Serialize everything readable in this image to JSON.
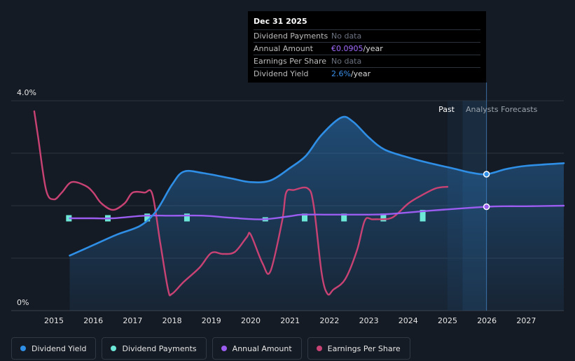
{
  "chart_data": {
    "type": "line",
    "y_axis": {
      "top_label": "4.0%",
      "bottom_label": "0%",
      "ylim": [
        0,
        4.0
      ]
    },
    "x_ticks": [
      "2015",
      "2016",
      "2017",
      "2018",
      "2019",
      "2020",
      "2021",
      "2022",
      "2023",
      "2024",
      "2025",
      "2026",
      "2027"
    ],
    "regions": {
      "past_label": "Past",
      "forecast_label": "Analysts Forecasts"
    },
    "series": [
      {
        "name": "Dividend Yield",
        "color": "#2f8fe6",
        "unit": "%",
        "points": [
          [
            2015.4,
            1.05
          ],
          [
            2016.0,
            1.25
          ],
          [
            2016.6,
            1.45
          ],
          [
            2017.2,
            1.62
          ],
          [
            2017.6,
            1.9
          ],
          [
            2018.0,
            2.4
          ],
          [
            2018.3,
            2.65
          ],
          [
            2018.8,
            2.62
          ],
          [
            2019.5,
            2.52
          ],
          [
            2020.0,
            2.45
          ],
          [
            2020.5,
            2.48
          ],
          [
            2021.0,
            2.72
          ],
          [
            2021.4,
            2.95
          ],
          [
            2021.8,
            3.35
          ],
          [
            2022.3,
            3.68
          ],
          [
            2022.6,
            3.6
          ],
          [
            2023.0,
            3.3
          ],
          [
            2023.4,
            3.07
          ],
          [
            2024.0,
            2.92
          ],
          [
            2024.5,
            2.82
          ],
          [
            2025.2,
            2.7
          ],
          [
            2025.6,
            2.63
          ],
          [
            2025.99,
            2.6
          ],
          [
            2026.5,
            2.7
          ],
          [
            2027.0,
            2.76
          ],
          [
            2028.0,
            2.81
          ]
        ]
      },
      {
        "name": "Annual Amount",
        "color": "#9b5cf0",
        "unit": "€/year",
        "points": [
          [
            2015.4,
            1.76
          ],
          [
            2016.0,
            1.76
          ],
          [
            2016.5,
            1.76
          ],
          [
            2017.3,
            1.81
          ],
          [
            2018.0,
            1.81
          ],
          [
            2018.8,
            1.81
          ],
          [
            2019.5,
            1.77
          ],
          [
            2020.3,
            1.74
          ],
          [
            2021.0,
            1.8
          ],
          [
            2021.3,
            1.83
          ],
          [
            2022.0,
            1.83
          ],
          [
            2023.0,
            1.83
          ],
          [
            2023.5,
            1.84
          ],
          [
            2024.3,
            1.89
          ],
          [
            2025.0,
            1.93
          ],
          [
            2025.99,
            1.98
          ],
          [
            2026.5,
            1.99
          ],
          [
            2027.0,
            1.99
          ],
          [
            2028.0,
            2.0
          ]
        ]
      },
      {
        "name": "Earnings Per Share",
        "color": "#c94274",
        "points": [
          [
            2014.5,
            3.8
          ],
          [
            2014.6,
            3.3
          ],
          [
            2014.8,
            2.3
          ],
          [
            2015.0,
            2.12
          ],
          [
            2015.2,
            2.25
          ],
          [
            2015.45,
            2.45
          ],
          [
            2015.8,
            2.38
          ],
          [
            2016.0,
            2.25
          ],
          [
            2016.2,
            2.05
          ],
          [
            2016.5,
            1.92
          ],
          [
            2016.8,
            2.05
          ],
          [
            2017.0,
            2.25
          ],
          [
            2017.3,
            2.25
          ],
          [
            2017.5,
            2.22
          ],
          [
            2017.7,
            1.3
          ],
          [
            2017.9,
            0.4
          ],
          [
            2018.0,
            0.32
          ],
          [
            2018.3,
            0.55
          ],
          [
            2018.7,
            0.82
          ],
          [
            2019.0,
            1.1
          ],
          [
            2019.3,
            1.08
          ],
          [
            2019.6,
            1.12
          ],
          [
            2019.9,
            1.4
          ],
          [
            2020.0,
            1.45
          ],
          [
            2020.3,
            0.9
          ],
          [
            2020.5,
            0.75
          ],
          [
            2020.8,
            1.72
          ],
          [
            2020.9,
            2.25
          ],
          [
            2021.1,
            2.3
          ],
          [
            2021.45,
            2.33
          ],
          [
            2021.6,
            2.0
          ],
          [
            2021.8,
            0.72
          ],
          [
            2021.95,
            0.32
          ],
          [
            2022.1,
            0.4
          ],
          [
            2022.4,
            0.6
          ],
          [
            2022.7,
            1.15
          ],
          [
            2022.9,
            1.72
          ],
          [
            2023.1,
            1.74
          ],
          [
            2023.5,
            1.75
          ],
          [
            2023.7,
            1.83
          ],
          [
            2024.0,
            2.04
          ],
          [
            2024.3,
            2.18
          ],
          [
            2024.7,
            2.33
          ],
          [
            2025.0,
            2.36
          ]
        ]
      }
    ],
    "bars": {
      "name": "Dividend Payments",
      "color": "#6de8d8",
      "points": [
        [
          2015.38,
          1.7,
          1.82
        ],
        [
          2016.37,
          1.7,
          1.82
        ],
        [
          2017.37,
          1.7,
          1.85
        ],
        [
          2018.38,
          1.7,
          1.85
        ],
        [
          2020.37,
          1.7,
          1.78
        ],
        [
          2021.37,
          1.7,
          1.85
        ],
        [
          2022.37,
          1.7,
          1.85
        ],
        [
          2023.37,
          1.7,
          1.85
        ],
        [
          2024.37,
          1.7,
          1.92
        ]
      ]
    },
    "highlight_x": 2025.99
  },
  "tooltip": {
    "date": "Dec 31 2025",
    "rows": [
      {
        "label": "Dividend Payments",
        "value": "No data",
        "unit": "",
        "style": "muted"
      },
      {
        "label": "Annual Amount",
        "value": "€0.0905",
        "unit": "/year",
        "style": "purple"
      },
      {
        "label": "Earnings Per Share",
        "value": "No data",
        "unit": "",
        "style": "muted"
      },
      {
        "label": "Dividend Yield",
        "value": "2.6%",
        "unit": "/year",
        "style": "blue"
      }
    ]
  },
  "legend": [
    {
      "label": "Dividend Yield",
      "color": "#2f8fe6"
    },
    {
      "label": "Dividend Payments",
      "color": "#6de8d8"
    },
    {
      "label": "Annual Amount",
      "color": "#9b5cf0"
    },
    {
      "label": "Earnings Per Share",
      "color": "#c94274"
    }
  ]
}
